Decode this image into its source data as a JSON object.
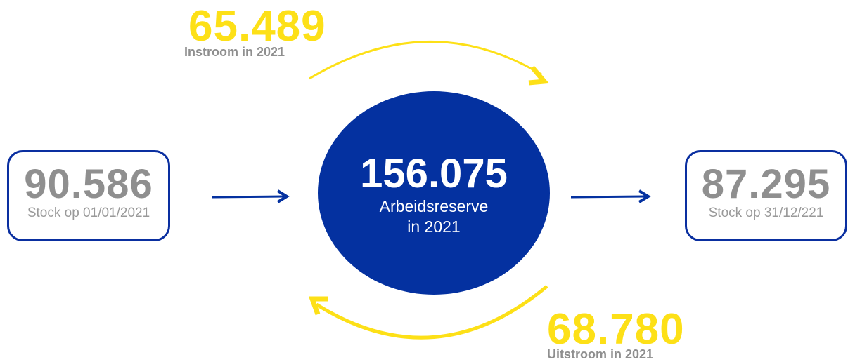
{
  "inflow": {
    "value": "65.489",
    "label": "Instroom in 2021"
  },
  "stock_start": {
    "value": "90.586",
    "label": "Stock op 01/01/2021"
  },
  "center": {
    "value": "156.075",
    "label_line1": "Arbeidsreserve",
    "label_line2": "in 2021"
  },
  "stock_end": {
    "value": "87.295",
    "label": "Stock op 31/12/221"
  },
  "outflow": {
    "value": "68.780",
    "label": "Uitstroom in 2021"
  },
  "colors": {
    "primary_blue": "#0431a0",
    "box_border_blue": "#0a2fa0",
    "accent_yellow": "#fde017",
    "text_grey": "#8f8f8f"
  }
}
